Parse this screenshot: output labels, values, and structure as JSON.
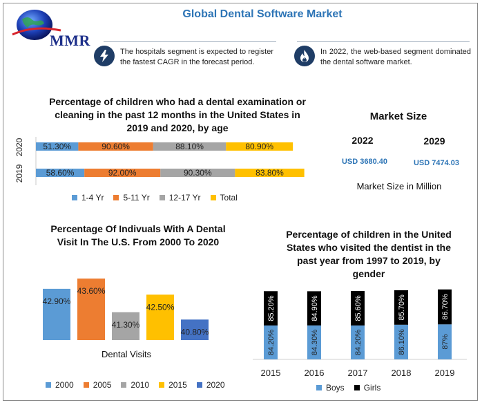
{
  "header": {
    "logo_text": "MMR",
    "title": "Global Dental Software Market"
  },
  "info": [
    {
      "icon": "lightning-icon",
      "text": "The hospitals segment is expected to register the fastest CAGR in the forecast period."
    },
    {
      "icon": "flame-icon",
      "text": "In 2022, the web-based segment dominated the dental software market."
    }
  ],
  "market_size": {
    "heading": "Market Size",
    "year_a": "2022",
    "year_b": "2029",
    "value_a": "USD 3680.40",
    "value_b": "USD 7474.03",
    "unit_note": "Market Size in Million"
  },
  "colors": {
    "blue": "#5b9bd5",
    "orange": "#ed7d31",
    "gray": "#a5a5a5",
    "yellow": "#ffc000",
    "darkblue": "#4472c4",
    "black": "#000000",
    "accent": "#2e75b6"
  },
  "chart_data": [
    {
      "type": "bar",
      "orientation": "horizontal-stacked",
      "title": "Percentage of children who had a dental examination or cleaning in the past 12 months in the United States in 2019 and 2020, by age",
      "categories": [
        "2020",
        "2019"
      ],
      "series": [
        {
          "name": "1-4 Yr",
          "values": [
            51.3,
            58.6
          ],
          "labels": [
            "51.30%",
            "58.60%"
          ],
          "color": "#5b9bd5"
        },
        {
          "name": "5-11 Yr",
          "values": [
            90.6,
            92.0
          ],
          "labels": [
            "90.60%",
            "92.00%"
          ],
          "color": "#ed7d31"
        },
        {
          "name": "12-17 Yr",
          "values": [
            88.1,
            90.3
          ],
          "labels": [
            "88.10%",
            "90.30%"
          ],
          "color": "#a5a5a5"
        },
        {
          "name": "Total",
          "values": [
            80.9,
            83.8
          ],
          "labels": [
            "80.90%",
            "83.80%"
          ],
          "color": "#ffc000"
        }
      ],
      "legend": "bottom"
    },
    {
      "type": "bar",
      "title": "Percentage Of Indivuals With A Dental Visit In The U.S. From 2000 To 2020",
      "xlabel": "Dental Visits",
      "categories": [
        "2000",
        "2005",
        "2010",
        "2015",
        "2020"
      ],
      "values": [
        42.9,
        43.6,
        41.3,
        42.5,
        40.8
      ],
      "labels": [
        "42.90%",
        "43.60%",
        "41.30%",
        "42.50%",
        "40.80%"
      ],
      "colors": [
        "#5b9bd5",
        "#ed7d31",
        "#a5a5a5",
        "#ffc000",
        "#4472c4"
      ],
      "ylim": [
        39.4,
        44.5
      ],
      "legend": "bottom"
    },
    {
      "type": "bar",
      "orientation": "vertical-stacked",
      "title": "Percentage of children in the United States who visited the dentist in the past year from 1997 to 2019, by gender",
      "categories": [
        "2015",
        "2016",
        "2017",
        "2018",
        "2019"
      ],
      "series": [
        {
          "name": "Boys",
          "values": [
            84.2,
            84.3,
            84.2,
            86.1,
            87
          ],
          "labels": [
            "84.20%",
            "84.30%",
            "84.20%",
            "86.10%",
            "87%"
          ],
          "color": "#5b9bd5"
        },
        {
          "name": "Girls",
          "values": [
            85.2,
            84.9,
            85.6,
            85.7,
            86.7
          ],
          "labels": [
            "85.20%",
            "84.90%",
            "85.60%",
            "85.70%",
            "86.70%"
          ],
          "color": "#000000"
        }
      ],
      "legend": "bottom"
    }
  ]
}
